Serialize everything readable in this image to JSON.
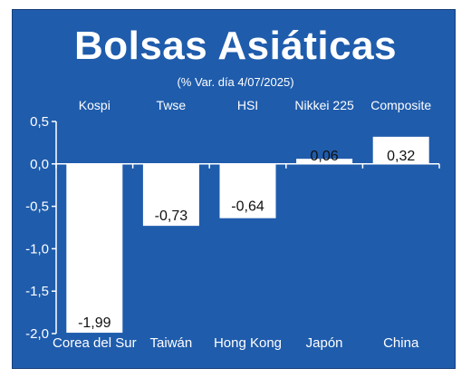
{
  "chart_data": {
    "type": "bar",
    "title": "Bolsas Asiáticas",
    "subtitle": "(% Var. día 4/07/2025)",
    "index_names": [
      "Kospi",
      "Twse",
      "HSI",
      "Nikkei 225",
      "Composite"
    ],
    "categories": [
      "Corea del Sur",
      "Taiwán",
      "Hong Kong",
      "Japón",
      "China"
    ],
    "values": [
      -1.99,
      -0.73,
      -0.64,
      0.06,
      0.32
    ],
    "value_labels": [
      "-1,99",
      "-0,73",
      "-0,64",
      "0,06",
      "0,32"
    ],
    "ylim": [
      -2.0,
      0.5
    ],
    "yticks": [
      0.5,
      0.0,
      -0.5,
      -1.0,
      -1.5,
      -2.0
    ],
    "ytick_labels": [
      "0,5",
      "0,0",
      "-0,5",
      "-1,0",
      "-1,5",
      "-2,0"
    ],
    "xlabel": "",
    "ylabel": "",
    "grid": false,
    "colors": {
      "background": "#1f5cac",
      "bar": "#ffffff",
      "text": "#ffffff",
      "label_text": "#111111"
    }
  }
}
